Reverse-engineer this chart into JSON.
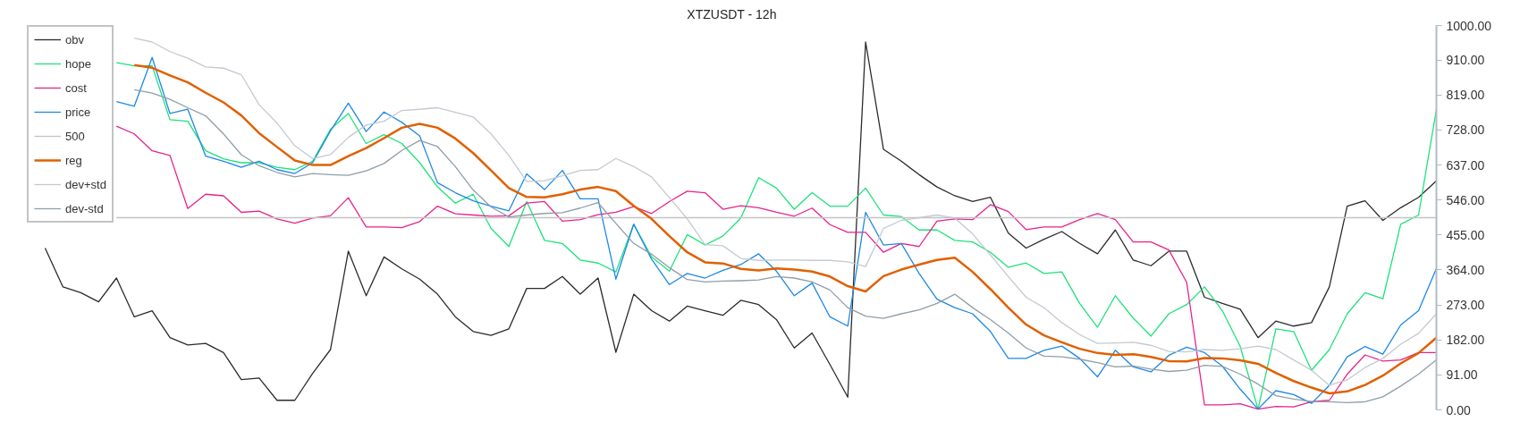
{
  "chart_data": {
    "type": "line",
    "title": "XTZUSDT - 12h",
    "categories": [
      null,
      null,
      null,
      null,
      null,
      null,
      null,
      null,
      null,
      null,
      null,
      null,
      null,
      null,
      null,
      null,
      null,
      null,
      null,
      null,
      null,
      null,
      null,
      null,
      null,
      null,
      null,
      null,
      null,
      null,
      null,
      null,
      null,
      null,
      null,
      null,
      null,
      null,
      null,
      null,
      null,
      null,
      null,
      null,
      null,
      null,
      null,
      null,
      null,
      null,
      null,
      null,
      null,
      null,
      null,
      null,
      null,
      null,
      null,
      null,
      null,
      null,
      null,
      null,
      null,
      null,
      null,
      null,
      null,
      null,
      null,
      null,
      null,
      null,
      null,
      null,
      null,
      null,
      null,
      null
    ],
    "ylim": [
      0,
      1000
    ],
    "yticks": [
      {
        "value": 0,
        "label": "0.00"
      },
      {
        "value": 91,
        "label": "91.00"
      },
      {
        "value": 182,
        "label": "182.00"
      },
      {
        "value": 273,
        "label": "273.00"
      },
      {
        "value": 364,
        "label": "364.00"
      },
      {
        "value": 455,
        "label": "455.00"
      },
      {
        "value": 546,
        "label": "546.00"
      },
      {
        "value": 637,
        "label": "637.00"
      },
      {
        "value": 728,
        "label": "728.00"
      },
      {
        "value": 819,
        "label": "819.00"
      },
      {
        "value": 910,
        "label": "910.00"
      },
      {
        "value": 1000,
        "label": "1000.00"
      }
    ],
    "tick_labels": "y",
    "grid": false,
    "legend": "top left",
    "marker": "none",
    "line_style": "solid",
    "series": [
      {
        "name": "obv",
        "color": "#2b2b2b",
        "values": [
          null,
          421,
          320,
          305,
          281,
          343,
          242,
          258,
          188,
          169,
          173,
          149,
          79,
          83,
          25,
          25,
          95,
          157,
          413,
          297,
          398,
          367,
          340,
          301,
          242,
          204,
          194,
          211,
          316,
          316,
          347,
          301,
          343,
          150,
          301,
          258,
          231,
          270,
          258,
          246,
          285,
          274,
          235,
          161,
          200,
          118,
          33,
          957,
          678,
          647,
          612,
          580,
          557,
          542,
          553,
          460,
          421,
          444,
          464,
          433,
          406,
          468,
          390,
          375,
          413,
          413,
          293,
          277,
          262,
          188,
          231,
          218,
          227,
          320,
          530,
          544,
          493,
          526,
          553,
          596
        ]
      },
      {
        "name": "hope",
        "color": "#1de27a",
        "values": [
          null,
          null,
          null,
          null,
          null,
          903,
          895,
          895,
          755,
          751,
          674,
          653,
          643,
          643,
          631,
          625,
          647,
          730,
          771,
          693,
          716,
          693,
          643,
          580,
          538,
          561,
          472,
          425,
          542,
          441,
          433,
          390,
          382,
          359,
          483,
          398,
          361,
          456,
          429,
          452,
          499,
          604,
          577,
          522,
          565,
          530,
          530,
          577,
          507,
          503,
          468,
          468,
          441,
          437,
          410,
          371,
          382,
          355,
          359,
          277,
          215,
          297,
          239,
          192,
          250,
          274,
          320,
          258,
          165,
          2,
          211,
          204,
          103,
          157,
          250,
          305,
          289,
          483,
          507,
          782
        ]
      },
      {
        "name": "cost",
        "color": "#e8228c",
        "values": [
          null,
          null,
          null,
          null,
          null,
          738,
          718,
          674,
          662,
          524,
          561,
          557,
          514,
          517,
          497,
          486,
          499,
          505,
          552,
          476,
          476,
          474,
          490,
          530,
          510,
          507,
          504,
          505,
          538,
          542,
          491,
          495,
          508,
          514,
          529,
          511,
          542,
          569,
          565,
          522,
          531,
          526,
          514,
          504,
          525,
          482,
          462,
          462,
          410,
          433,
          425,
          491,
          497,
          495,
          534,
          516,
          469,
          476,
          476,
          495,
          511,
          495,
          437,
          437,
          416,
          332,
          13,
          13,
          16,
          2,
          9,
          8,
          21,
          25,
          93,
          143,
          127,
          130,
          149,
          149
        ]
      },
      {
        "name": "price",
        "color": "#1e88e5",
        "values": [
          null,
          null,
          null,
          null,
          null,
          802,
          790,
          917,
          771,
          782,
          660,
          647,
          631,
          647,
          625,
          615,
          643,
          726,
          798,
          724,
          775,
          748,
          713,
          591,
          565,
          544,
          530,
          518,
          614,
          573,
          623,
          549,
          549,
          340,
          483,
          392,
          326,
          355,
          343,
          363,
          378,
          406,
          361,
          297,
          330,
          242,
          218,
          514,
          429,
          433,
          355,
          288,
          266,
          250,
          204,
          134,
          134,
          155,
          166,
          134,
          86,
          155,
          112,
          99,
          142,
          163,
          149,
          114,
          54,
          2,
          50,
          40,
          17,
          64,
          138,
          165,
          145,
          221,
          258,
          368
        ]
      },
      {
        "name": "500",
        "color": "#c4c4c4",
        "values": [
          null,
          null,
          null,
          null,
          null,
          500,
          500,
          500,
          500,
          500,
          500,
          500,
          500,
          500,
          500,
          500,
          500,
          500,
          500,
          500,
          500,
          500,
          500,
          500,
          500,
          500,
          500,
          500,
          500,
          500,
          500,
          500,
          500,
          500,
          500,
          500,
          500,
          500,
          500,
          500,
          500,
          500,
          500,
          500,
          500,
          500,
          500,
          500,
          500,
          500,
          500,
          500,
          500,
          500,
          500,
          500,
          500,
          500,
          500,
          500,
          500,
          500,
          500,
          500,
          500,
          500,
          500,
          500,
          500,
          500,
          500,
          500,
          500,
          500,
          500,
          500,
          500,
          500,
          500,
          500
        ]
      },
      {
        "name": "reg",
        "color": "#e06000",
        "values": [
          null,
          null,
          null,
          null,
          null,
          null,
          897,
          890,
          870,
          852,
          825,
          800,
          766,
          720,
          684,
          649,
          637,
          637,
          660,
          681,
          707,
          734,
          744,
          734,
          706,
          668,
          623,
          577,
          554,
          553,
          561,
          573,
          580,
          569,
          531,
          497,
          452,
          410,
          384,
          381,
          367,
          363,
          368,
          365,
          360,
          347,
          322,
          308,
          348,
          365,
          378,
          390,
          396,
          359,
          314,
          266,
          222,
          194,
          176,
          159,
          148,
          143,
          145,
          138,
          127,
          126,
          135,
          134,
          129,
          120,
          96,
          75,
          58,
          43,
          48,
          65,
          89,
          121,
          148,
          188
        ]
      },
      {
        "name": "dev+std",
        "color": "#c3cad0",
        "values": [
          null,
          null,
          null,
          null,
          null,
          null,
          967,
          957,
          932,
          915,
          892,
          889,
          872,
          794,
          746,
          687,
          654,
          664,
          709,
          741,
          751,
          779,
          782,
          786,
          774,
          762,
          718,
          662,
          594,
          596,
          609,
          623,
          625,
          654,
          633,
          606,
          552,
          497,
          430,
          427,
          394,
          389,
          390,
          390,
          389,
          389,
          385,
          373,
          472,
          493,
          500,
          507,
          499,
          458,
          403,
          347,
          293,
          266,
          227,
          196,
          173,
          174,
          176,
          168,
          152,
          151,
          157,
          155,
          159,
          166,
          157,
          130,
          103,
          64,
          78,
          110,
          134,
          171,
          199,
          250
        ]
      },
      {
        "name": "dev-std",
        "color": "#8f9ea8",
        "values": [
          null,
          null,
          null,
          null,
          null,
          null,
          833,
          824,
          808,
          786,
          765,
          718,
          664,
          635,
          618,
          606,
          615,
          612,
          610,
          622,
          641,
          675,
          701,
          685,
          633,
          572,
          528,
          502,
          507,
          511,
          513,
          525,
          539,
          485,
          433,
          405,
          370,
          339,
          333,
          335,
          336,
          338,
          347,
          343,
          333,
          312,
          266,
          244,
          238,
          250,
          260,
          277,
          301,
          266,
          235,
          200,
          161,
          140,
          138,
          132,
          123,
          112,
          114,
          106,
          100,
          103,
          116,
          113,
          93,
          67,
          37,
          28,
          22,
          21,
          19,
          21,
          34,
          62,
          93,
          130
        ]
      }
    ]
  }
}
